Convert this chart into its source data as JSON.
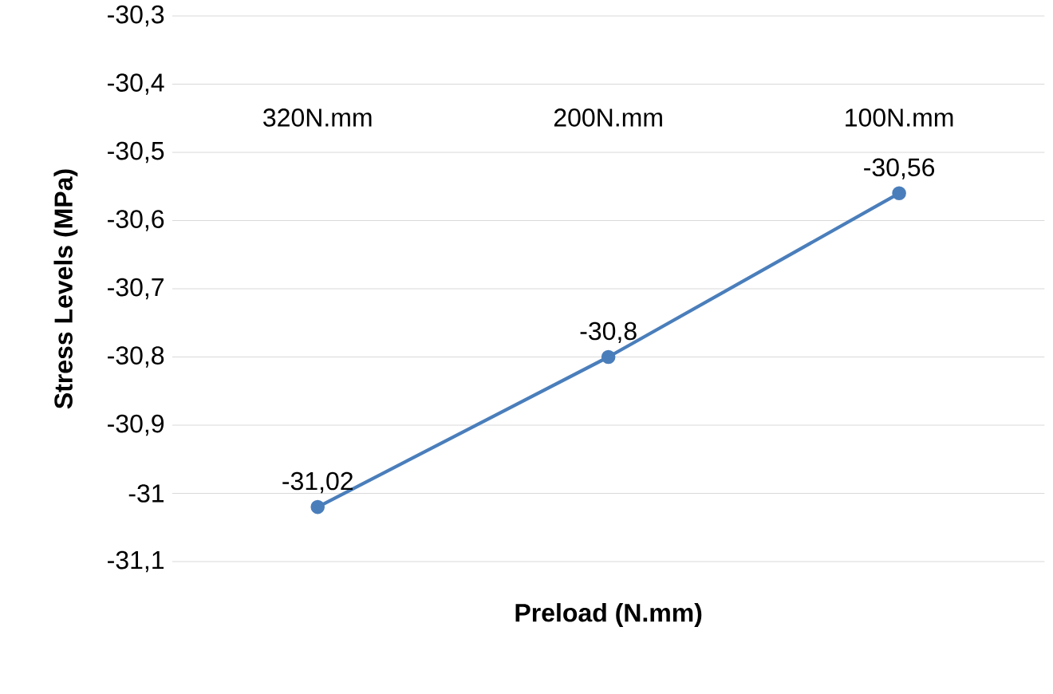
{
  "chart_data": {
    "type": "line",
    "xlabel": "Preload (N.mm)",
    "ylabel": "Stress Levels  (MPa)",
    "categories": [
      "320N.mm",
      "200N.mm",
      "100N.mm"
    ],
    "series": [
      {
        "color": "#4a7ebb",
        "values": [
          -31.02,
          -30.8,
          -30.56
        ],
        "value_labels": [
          "-31,02",
          "-30,8",
          "-30,56"
        ]
      }
    ],
    "ylim": [
      -31.1,
      -30.3
    ],
    "yticks": [
      {
        "value": -31.1,
        "label": "-31,1"
      },
      {
        "value": -31,
        "label": "-31"
      },
      {
        "value": -30.9,
        "label": "-30,9"
      },
      {
        "value": -30.8,
        "label": "-30,8"
      },
      {
        "value": -30.7,
        "label": "-30,7"
      },
      {
        "value": -30.6,
        "label": "-30,6"
      },
      {
        "value": -30.5,
        "label": "-30,5"
      },
      {
        "value": -30.4,
        "label": "-30,4"
      },
      {
        "value": -30.3,
        "label": "-30,3"
      }
    ],
    "grid": "y",
    "marker": "circle",
    "line_style": "solid"
  }
}
